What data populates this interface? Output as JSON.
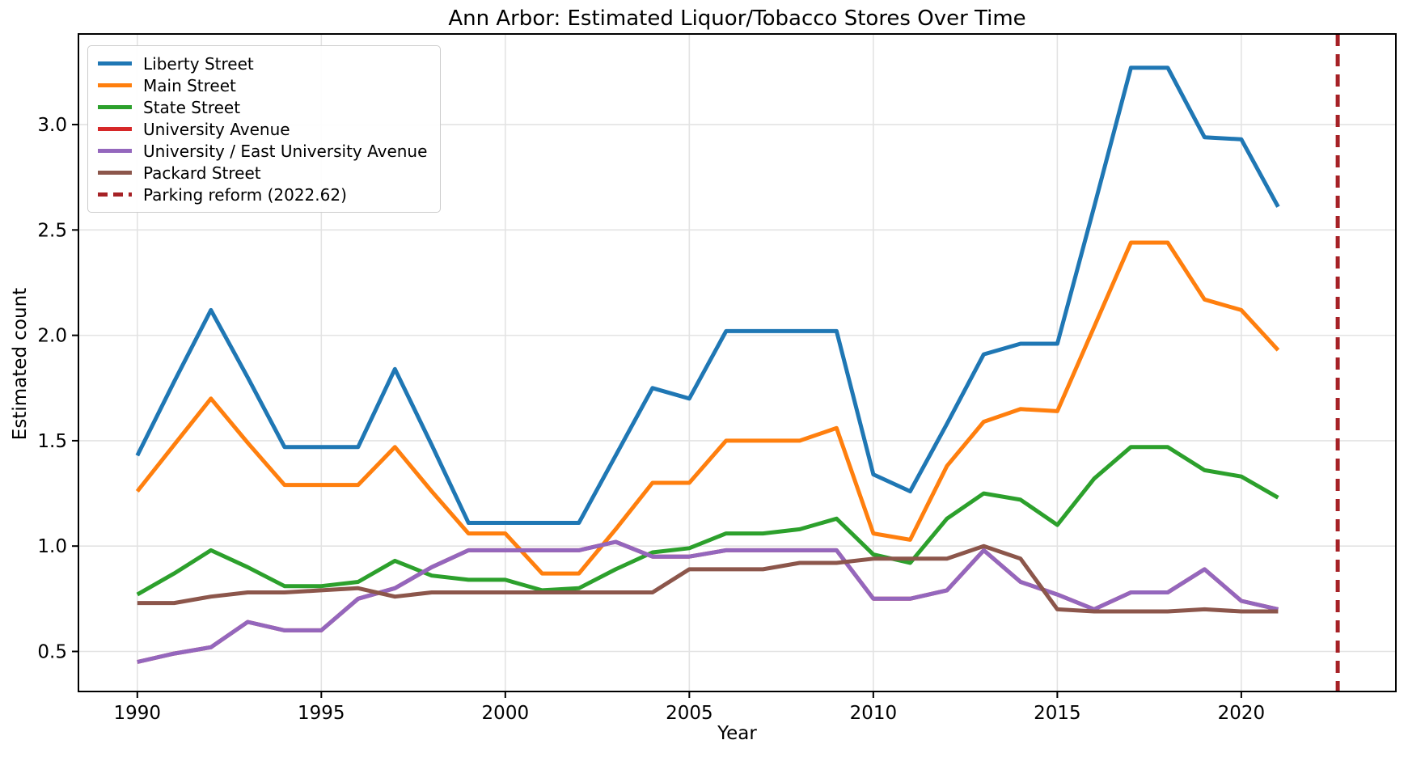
{
  "title": "Ann Arbor: Estimated Liquor/Tobacco Stores Over Time",
  "axes": {
    "xlabel": "Year",
    "ylabel": "Estimated count",
    "x_ticks": [
      1990,
      1995,
      2000,
      2005,
      2010,
      2015,
      2020
    ],
    "y_ticks": [
      0.5,
      1.0,
      1.5,
      2.0,
      2.5,
      3.0
    ]
  },
  "chart_data": {
    "type": "line",
    "grid": true,
    "legend_position": "upper left",
    "xlim": [
      1988.4,
      2024.2
    ],
    "ylim": [
      0.31,
      3.43
    ],
    "x": [
      1990,
      1991,
      1992,
      1993,
      1994,
      1995,
      1996,
      1997,
      1998,
      1999,
      2000,
      2001,
      2002,
      2003,
      2004,
      2005,
      2006,
      2007,
      2008,
      2009,
      2010,
      2011,
      2012,
      2013,
      2014,
      2015,
      2016,
      2017,
      2018,
      2019,
      2020,
      2021
    ],
    "series": [
      {
        "name": "Liberty Street",
        "color": "#1f77b4",
        "values": [
          1.43,
          1.78,
          2.12,
          1.8,
          1.47,
          1.47,
          1.47,
          1.84,
          1.48,
          1.11,
          1.11,
          1.11,
          1.11,
          1.43,
          1.75,
          1.7,
          2.02,
          2.02,
          2.02,
          2.02,
          1.34,
          1.26,
          1.58,
          1.91,
          1.96,
          1.96,
          2.61,
          3.27,
          3.27,
          2.94,
          2.93,
          2.61
        ]
      },
      {
        "name": "Main Street",
        "color": "#ff7f0e",
        "values": [
          1.26,
          1.48,
          1.7,
          1.49,
          1.29,
          1.29,
          1.29,
          1.47,
          1.26,
          1.06,
          1.06,
          0.87,
          0.87,
          1.08,
          1.3,
          1.3,
          1.5,
          1.5,
          1.5,
          1.56,
          1.06,
          1.03,
          1.38,
          1.59,
          1.65,
          1.64,
          2.04,
          2.44,
          2.44,
          2.17,
          2.12,
          1.93
        ]
      },
      {
        "name": "State Street",
        "color": "#2ca02c",
        "values": [
          0.77,
          0.87,
          0.98,
          0.9,
          0.81,
          0.81,
          0.83,
          0.93,
          0.86,
          0.84,
          0.84,
          0.79,
          0.8,
          0.89,
          0.97,
          0.99,
          1.06,
          1.06,
          1.08,
          1.13,
          0.96,
          0.92,
          1.13,
          1.25,
          1.22,
          1.1,
          1.32,
          1.47,
          1.47,
          1.36,
          1.33,
          1.23
        ]
      },
      {
        "name": "University Avenue",
        "color": "#d62728",
        "values": [
          0.45,
          0.49,
          0.52,
          0.64,
          0.6,
          0.6,
          0.75,
          0.8,
          0.9,
          0.98,
          0.98,
          0.98,
          0.98,
          1.02,
          0.95,
          0.95,
          0.98,
          0.98,
          0.98,
          0.98,
          0.75,
          0.75,
          0.79,
          0.98,
          0.83,
          0.77,
          0.7,
          0.78,
          0.78,
          0.89,
          0.74,
          0.7
        ]
      },
      {
        "name": "University / East University Avenue",
        "color": "#9467bd",
        "values": [
          0.45,
          0.49,
          0.52,
          0.64,
          0.6,
          0.6,
          0.75,
          0.8,
          0.9,
          0.98,
          0.98,
          0.98,
          0.98,
          1.02,
          0.95,
          0.95,
          0.98,
          0.98,
          0.98,
          0.98,
          0.75,
          0.75,
          0.79,
          0.98,
          0.83,
          0.77,
          0.7,
          0.78,
          0.78,
          0.89,
          0.74,
          0.7
        ]
      },
      {
        "name": "Packard Street",
        "color": "#8c564b",
        "values": [
          0.73,
          0.73,
          0.76,
          0.78,
          0.78,
          0.79,
          0.8,
          0.76,
          0.78,
          0.78,
          0.78,
          0.78,
          0.78,
          0.78,
          0.78,
          0.89,
          0.89,
          0.89,
          0.92,
          0.92,
          0.94,
          0.94,
          0.94,
          1.0,
          0.94,
          0.7,
          0.69,
          0.69,
          0.69,
          0.7,
          0.69,
          0.69
        ]
      }
    ],
    "vline": {
      "label": "Parking reform (2022.62)",
      "x": 2022.62,
      "color": "#a62126",
      "style": "dashed"
    }
  }
}
